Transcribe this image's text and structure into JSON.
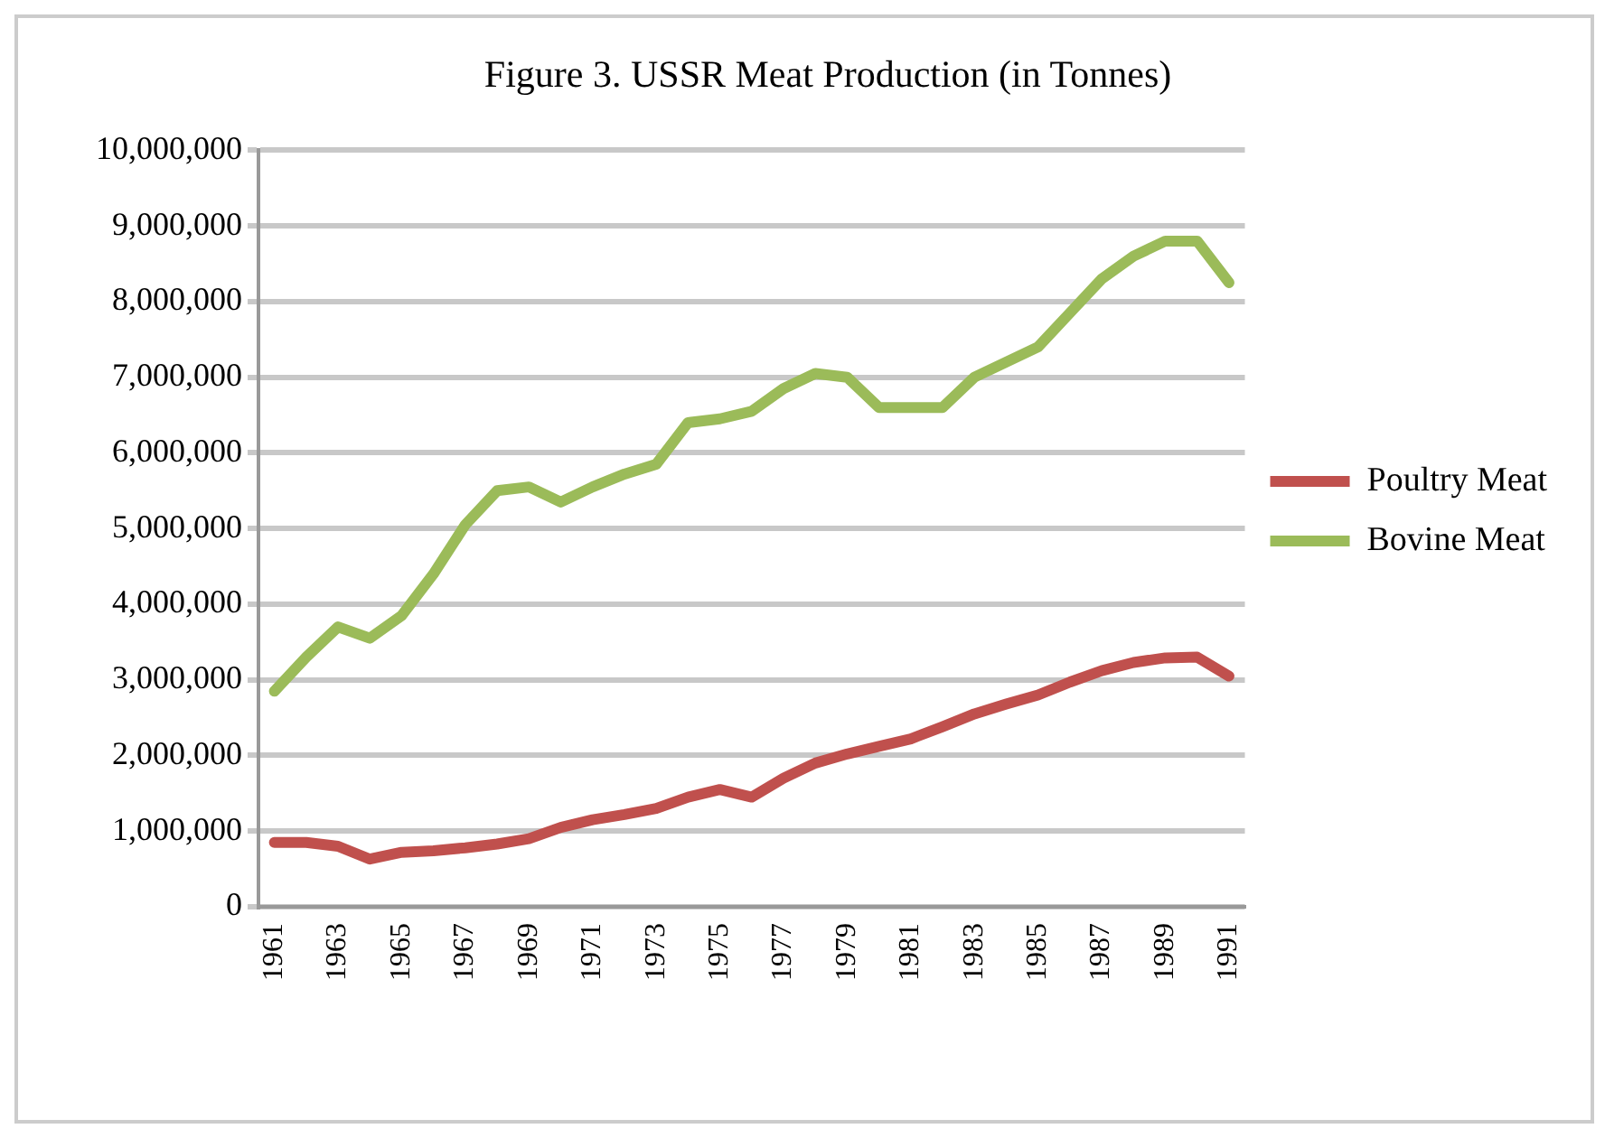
{
  "chart_data": {
    "type": "line",
    "title": "Figure 3. USSR Meat Production (in Tonnes)",
    "categories": [
      "1961",
      null,
      "1963",
      null,
      "1965",
      null,
      "1967",
      null,
      "1969",
      null,
      "1971",
      null,
      "1973",
      null,
      "1975",
      null,
      "1977",
      null,
      "1979",
      null,
      "1981",
      null,
      "1983",
      null,
      "1985",
      null,
      "1987",
      null,
      "1989",
      null,
      "1991"
    ],
    "series": [
      {
        "name": "Poultry Meat",
        "color": "#c0504d",
        "values": [
          850000,
          850000,
          800000,
          630000,
          720000,
          740000,
          780000,
          830000,
          900000,
          1050000,
          1150000,
          1220000,
          1300000,
          1450000,
          1550000,
          1450000,
          1700000,
          1900000,
          2020000,
          2120000,
          2220000,
          2380000,
          2550000,
          2680000,
          2800000,
          2970000,
          3120000,
          3230000,
          3290000,
          3300000,
          3050000
        ]
      },
      {
        "name": "Bovine Meat",
        "color": "#9bbb59",
        "values": [
          2850000,
          3300000,
          3700000,
          3550000,
          3850000,
          4400000,
          5050000,
          5500000,
          5550000,
          5350000,
          5550000,
          5720000,
          5850000,
          6400000,
          6450000,
          6550000,
          6850000,
          7050000,
          7000000,
          6600000,
          6600000,
          6600000,
          7000000,
          7200000,
          7400000,
          7850000,
          8300000,
          8600000,
          8800000,
          8800000,
          8250000
        ]
      }
    ],
    "ylim": [
      0,
      10000000
    ],
    "yticks": [
      0,
      {
        "value": 1000000,
        "label": "1,000,000"
      },
      {
        "value": 2000000,
        "label": "2,000,000"
      },
      {
        "value": 3000000,
        "label": "3,000,000"
      },
      {
        "value": 4000000,
        "label": "4,000,000"
      },
      {
        "value": 5000000,
        "label": "5,000,000"
      },
      {
        "value": 6000000,
        "label": "6,000,000"
      },
      {
        "value": 7000000,
        "label": "7,000,000"
      },
      {
        "value": 8000000,
        "label": "8,000,000"
      },
      {
        "value": 9000000,
        "label": "9,000,000"
      },
      {
        "value": 10000000,
        "label": "10,000,000"
      }
    ],
    "grid": "y",
    "legend": "right",
    "marker": "none",
    "line_style": "solid"
  }
}
